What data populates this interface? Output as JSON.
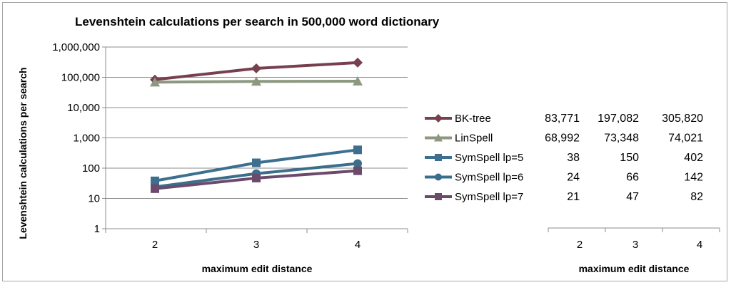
{
  "chart_data": {
    "type": "line",
    "title": "Levenshtein calculations per search in 500,000 word dictionary",
    "xlabel": "maximum edit distance",
    "ylabel": "Levenshtein calculations per search",
    "yscale": "log",
    "ylim": [
      1,
      1000000
    ],
    "y_ticks": [
      "1,000,000",
      "100,000",
      "10,000",
      "1,000",
      "100",
      "10",
      "1"
    ],
    "x": [
      2,
      3,
      4
    ],
    "x_tick_labels": [
      "2",
      "3",
      "4"
    ],
    "grid": "horizontal",
    "legend": "right",
    "series": [
      {
        "name": "BK-tree",
        "values": [
          83771,
          197082,
          305820
        ],
        "labels": [
          "83,771",
          "197,082",
          "305,820"
        ],
        "color": "#77404f",
        "marker": "diamond"
      },
      {
        "name": "LinSpell",
        "values": [
          68992,
          73348,
          74021
        ],
        "labels": [
          "68,992",
          "73,348",
          "74,021"
        ],
        "color": "#8c9880",
        "marker": "triangle"
      },
      {
        "name": "SymSpell lp=5",
        "values": [
          38,
          150,
          402
        ],
        "labels": [
          "38",
          "150",
          "402"
        ],
        "color": "#3d6f8f",
        "marker": "square"
      },
      {
        "name": "SymSpell lp=6",
        "values": [
          24,
          66,
          142
        ],
        "labels": [
          "24",
          "66",
          "142"
        ],
        "color": "#3a6e8c",
        "marker": "circle"
      },
      {
        "name": "SymSpell lp=7",
        "values": [
          21,
          47,
          82
        ],
        "labels": [
          "21",
          "47",
          "82"
        ],
        "color": "#6b4a6b",
        "marker": "square"
      }
    ]
  }
}
